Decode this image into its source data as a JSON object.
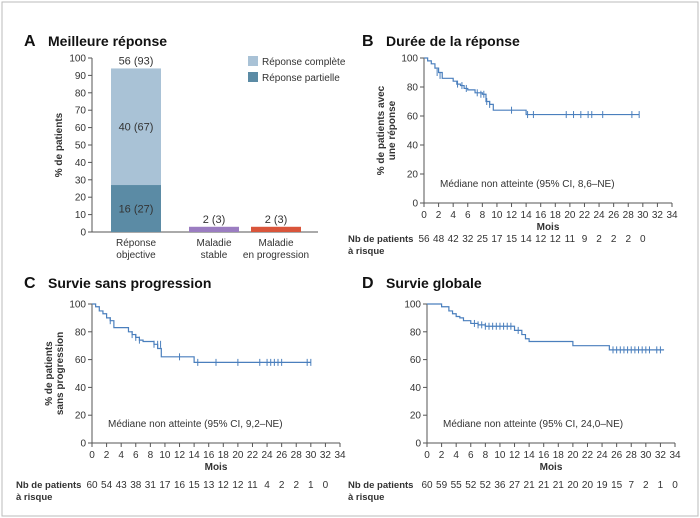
{
  "colors": {
    "bar_complete": "#a9c2d6",
    "bar_partial": "#5b8ba5",
    "bar_stable": "#9b7dc1",
    "bar_progression": "#d9553b",
    "km_line": "#4a7fbd"
  },
  "chart_data": [
    {
      "panel": "A",
      "type": "bar",
      "title": "Meilleure réponse",
      "ylabel": "% de patients",
      "ylim": [
        0,
        100
      ],
      "yticks": [
        "0",
        "10",
        "20",
        "30",
        "40",
        "50",
        "60",
        "70",
        "80",
        "90",
        "100"
      ],
      "categories": [
        {
          "line1": "Réponse",
          "line2": "objective"
        },
        {
          "line1": "Maladie",
          "line2": "stable"
        },
        {
          "line1": "Maladie",
          "line2": "en progression"
        }
      ],
      "legend": [
        "Réponse complète",
        "Réponse partielle"
      ],
      "bars": [
        {
          "segments": [
            {
              "value": 27,
              "label": "16 (27)",
              "color_key": "bar_partial"
            },
            {
              "value": 67,
              "label": "40 (67)",
              "color_key": "bar_complete"
            }
          ],
          "top_label": "56 (93)"
        },
        {
          "segments": [
            {
              "value": 3,
              "color_key": "bar_stable"
            }
          ],
          "top_label": "2 (3)"
        },
        {
          "segments": [
            {
              "value": 3,
              "color_key": "bar_progression"
            }
          ],
          "top_label": "2 (3)"
        }
      ]
    },
    {
      "panel": "B",
      "type": "line",
      "title": "Durée de la réponse",
      "ylabel_lines": [
        "% de patients avec",
        "une réponse"
      ],
      "xlabel": "Mois",
      "xlim": [
        0,
        34
      ],
      "ylim": [
        0,
        100
      ],
      "xticks": [
        "0",
        "2",
        "4",
        "6",
        "8",
        "10",
        "12",
        "14",
        "16",
        "18",
        "20",
        "22",
        "24",
        "26",
        "28",
        "30",
        "32",
        "34"
      ],
      "yticks": [
        "0",
        "20",
        "40",
        "60",
        "80",
        "100"
      ],
      "median_note": "Médiane non atteinte (95% CI, 8,6–NE)",
      "steps": [
        [
          0,
          100
        ],
        [
          0.5,
          98
        ],
        [
          1,
          96
        ],
        [
          1.5,
          93
        ],
        [
          2,
          90
        ],
        [
          2.5,
          86
        ],
        [
          4,
          84
        ],
        [
          4.5,
          82
        ],
        [
          5,
          81
        ],
        [
          5.5,
          79
        ],
        [
          6,
          78
        ],
        [
          7,
          76
        ],
        [
          8,
          75
        ],
        [
          8.5,
          70
        ],
        [
          9,
          68
        ],
        [
          9.5,
          64
        ],
        [
          13,
          64
        ],
        [
          14,
          61
        ],
        [
          29.5,
          61
        ]
      ],
      "censors": [
        [
          1.8,
          90
        ],
        [
          2.2,
          88
        ],
        [
          4.6,
          82
        ],
        [
          5.2,
          81
        ],
        [
          5.8,
          79
        ],
        [
          7.3,
          76
        ],
        [
          7.8,
          75
        ],
        [
          8.2,
          75
        ],
        [
          8.6,
          70
        ],
        [
          9,
          68
        ],
        [
          12,
          64
        ],
        [
          14.2,
          61
        ],
        [
          15,
          61
        ],
        [
          19.5,
          61
        ],
        [
          20.5,
          61
        ],
        [
          21.5,
          61
        ],
        [
          22.5,
          61
        ],
        [
          23,
          61
        ],
        [
          24.5,
          61
        ],
        [
          28.5,
          61
        ],
        [
          29.5,
          61
        ]
      ],
      "risk_label_lines": [
        "Nb de patients",
        "à risque"
      ],
      "risk": [
        "56",
        "48",
        "42",
        "32",
        "25",
        "17",
        "15",
        "14",
        "12",
        "12",
        "11",
        "9",
        "2",
        "2",
        "2",
        "0"
      ]
    },
    {
      "panel": "C",
      "type": "line",
      "title": "Survie sans progression",
      "ylabel_lines": [
        "% de patients",
        "sans progression"
      ],
      "xlabel": "Mois",
      "xlim": [
        0,
        34
      ],
      "ylim": [
        0,
        100
      ],
      "xticks": [
        "0",
        "2",
        "4",
        "6",
        "8",
        "10",
        "12",
        "14",
        "16",
        "18",
        "20",
        "22",
        "24",
        "26",
        "28",
        "30",
        "32",
        "34"
      ],
      "yticks": [
        "0",
        "20",
        "40",
        "60",
        "80",
        "100"
      ],
      "median_note": "Médiane non atteinte (95% CI, 9,2–NE)",
      "steps": [
        [
          0,
          100
        ],
        [
          0.5,
          98
        ],
        [
          1,
          95
        ],
        [
          1.5,
          93
        ],
        [
          2,
          90
        ],
        [
          2.5,
          88
        ],
        [
          3,
          83
        ],
        [
          5,
          80
        ],
        [
          5.5,
          78
        ],
        [
          6,
          76
        ],
        [
          6.5,
          74
        ],
        [
          7,
          73
        ],
        [
          8.5,
          71
        ],
        [
          9,
          68
        ],
        [
          9.5,
          62
        ],
        [
          12,
          62
        ],
        [
          14,
          58
        ],
        [
          30,
          58
        ]
      ],
      "censors": [
        [
          2.5,
          88
        ],
        [
          5.5,
          78
        ],
        [
          6,
          76
        ],
        [
          6.5,
          74
        ],
        [
          8.5,
          71
        ],
        [
          9,
          71
        ],
        [
          9.4,
          71
        ],
        [
          12,
          62
        ],
        [
          14.5,
          58
        ],
        [
          17,
          58
        ],
        [
          20,
          58
        ],
        [
          23,
          58
        ],
        [
          24,
          58
        ],
        [
          24.5,
          58
        ],
        [
          25,
          58
        ],
        [
          25.5,
          58
        ],
        [
          26,
          58
        ],
        [
          29.5,
          58
        ],
        [
          30,
          58
        ]
      ],
      "risk_label_lines": [
        "Nb de patients",
        "à risque"
      ],
      "risk": [
        "60",
        "54",
        "43",
        "38",
        "31",
        "17",
        "16",
        "15",
        "13",
        "12",
        "12",
        "11",
        "4",
        "2",
        "2",
        "1",
        "0"
      ]
    },
    {
      "panel": "D",
      "type": "line",
      "title": "Survie globale",
      "ylabel_lines": [],
      "xlabel": "Mois",
      "xlim": [
        0,
        34
      ],
      "ylim": [
        0,
        100
      ],
      "xticks": [
        "0",
        "2",
        "4",
        "6",
        "8",
        "10",
        "12",
        "14",
        "16",
        "18",
        "20",
        "22",
        "24",
        "26",
        "28",
        "30",
        "32",
        "34"
      ],
      "yticks": [
        "0",
        "20",
        "40",
        "60",
        "80",
        "100"
      ],
      "median_note": "Médiane non atteinte (95% CI, 24,0–NE)",
      "steps": [
        [
          0,
          100
        ],
        [
          2,
          98
        ],
        [
          3,
          95
        ],
        [
          3.5,
          93
        ],
        [
          4,
          91
        ],
        [
          4.5,
          90
        ],
        [
          5,
          88
        ],
        [
          6,
          86
        ],
        [
          7,
          85
        ],
        [
          8,
          84
        ],
        [
          9,
          84
        ],
        [
          12,
          81
        ],
        [
          13,
          78
        ],
        [
          13.5,
          75
        ],
        [
          14,
          73
        ],
        [
          19,
          73
        ],
        [
          20,
          70
        ],
        [
          25,
          67
        ],
        [
          32.5,
          67
        ]
      ],
      "censors": [
        [
          6.5,
          86
        ],
        [
          7,
          85
        ],
        [
          7.5,
          85
        ],
        [
          8,
          84
        ],
        [
          8.5,
          84
        ],
        [
          9,
          84
        ],
        [
          9.5,
          84
        ],
        [
          10,
          84
        ],
        [
          10.5,
          84
        ],
        [
          11,
          84
        ],
        [
          11.5,
          84
        ],
        [
          12.5,
          81
        ],
        [
          25.5,
          67
        ],
        [
          26,
          67
        ],
        [
          26.5,
          67
        ],
        [
          27,
          67
        ],
        [
          27.5,
          67
        ],
        [
          28,
          67
        ],
        [
          28.5,
          67
        ],
        [
          29,
          67
        ],
        [
          29.5,
          67
        ],
        [
          30,
          67
        ],
        [
          30.5,
          67
        ],
        [
          31.5,
          67
        ],
        [
          32,
          67
        ]
      ],
      "risk_label_lines": [
        "Nb de patients",
        "à risque"
      ],
      "risk": [
        "60",
        "59",
        "55",
        "52",
        "52",
        "36",
        "27",
        "21",
        "21",
        "21",
        "20",
        "20",
        "19",
        "15",
        "7",
        "2",
        "1",
        "0"
      ]
    }
  ]
}
